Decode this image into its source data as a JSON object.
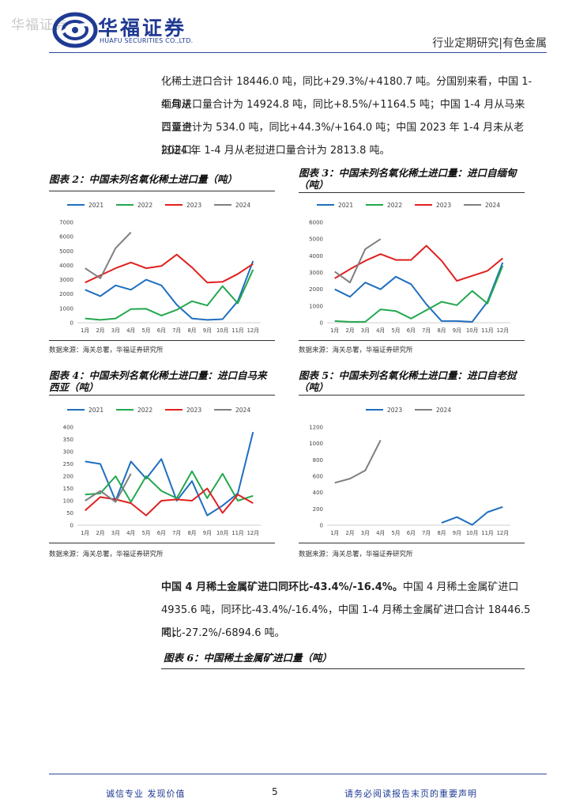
{
  "header": {
    "watermark": "华福证券",
    "logo_cn": "华福证券",
    "logo_en": "HUAFU SECURITIES CO.,LTD.",
    "report_type": "行业定期研究|有色金属"
  },
  "intro": {
    "line1": "化稀土进口合计 18446.0 吨，同比+29.3%/+4180.7 吨。分国别来看，中国 1-4 月从",
    "line2": "缅甸进口量合计为 14924.8 吨，同比+8.5%/+1164.5 吨；中国 1-4 月从马来西亚进",
    "line3": "口量合计为 534.0 吨，同比+44.3%/+164.0 吨；中国 2023 年 1-4 月未从老挝进口，",
    "line4": "2024 年 1-4 月从老挝进口量合计为 2813.8 吨。"
  },
  "figures": {
    "fig2": {
      "title": "图表 2：中国未列名氧化稀土进口量（吨）",
      "source": "数据来源：海关总署，华福证券研究所"
    },
    "fig3": {
      "title_l1": "图表 3：中国未列名氧化稀土进口量：进口自缅甸",
      "title_l2": "（吨）",
      "source": "数据来源：海关总署，华福证券研究所"
    },
    "fig4": {
      "title_l1": "图表 4：中国未列名氧化稀土进口量：进口自马来",
      "title_l2": "西亚（吨）",
      "source": "数据来源：海关总署，华福证券研究所"
    },
    "fig5": {
      "title_l1": "图表 5：中国未列名氧化稀土进口量：进口自老挝",
      "title_l2": "（吨）",
      "source": "数据来源：海关总署，华福证券研究所"
    },
    "fig6": {
      "title": "图表 6：中国稀土金属矿进口量（吨）"
    }
  },
  "body2": {
    "highlight": "中国 4 月稀土金属矿进口同环比-43.4%/-16.4%。",
    "line1_rest": "中国 4 月稀土金属矿进口",
    "line2": "4935.6 吨，同环比-43.4%/-16.4%，中国 1-4 月稀土金属矿进口合计 18446.5 吨，",
    "line3": "同比-27.2%/-6894.6 吨。"
  },
  "footer": {
    "left": "诚信专业  发现价值",
    "page": "5",
    "right": "请务必阅读报告末页的重要声明"
  },
  "colors": {
    "s2021": "#1f6fbf",
    "s2022": "#23a84e",
    "s2023": "#e0201f",
    "s2024": "#7f7f7f"
  },
  "chart_data": [
    {
      "id": "fig2",
      "type": "line",
      "title": "中国未列名氧化稀土进口量（吨）",
      "categories": [
        "1月",
        "2月",
        "3月",
        "4月",
        "5月",
        "6月",
        "7月",
        "8月",
        "9月",
        "10月",
        "11月",
        "12月"
      ],
      "ylim": [
        0,
        7000
      ],
      "yticks": [
        0,
        1000,
        2000,
        3000,
        4000,
        5000,
        6000,
        7000
      ],
      "legend": "top",
      "series": [
        {
          "name": "2021",
          "color": "#1f6fbf",
          "values": [
            2300,
            1850,
            2600,
            2300,
            3000,
            2600,
            1250,
            300,
            200,
            250,
            1500,
            4300
          ]
        },
        {
          "name": "2022",
          "color": "#23a84e",
          "values": [
            300,
            200,
            300,
            950,
            970,
            500,
            900,
            1500,
            1200,
            2550,
            1350,
            3700
          ]
        },
        {
          "name": "2023",
          "color": "#e0201f",
          "values": [
            2800,
            3300,
            3800,
            4200,
            3800,
            3950,
            4750,
            3850,
            2800,
            2850,
            3400,
            4100
          ]
        },
        {
          "name": "2024",
          "color": "#7f7f7f",
          "values": [
            3800,
            3100,
            5200,
            6300,
            null,
            null,
            null,
            null,
            null,
            null,
            null,
            null
          ]
        }
      ]
    },
    {
      "id": "fig3",
      "type": "line",
      "title": "中国未列名氧化稀土进口量：进口自缅甸（吨）",
      "categories": [
        "1月",
        "2月",
        "3月",
        "4月",
        "5月",
        "6月",
        "7月",
        "8月",
        "9月",
        "10月",
        "11月",
        "12月"
      ],
      "ylim": [
        0,
        6000
      ],
      "yticks": [
        0,
        1000,
        2000,
        3000,
        4000,
        5000,
        6000
      ],
      "legend": "top",
      "series": [
        {
          "name": "2021",
          "color": "#1f6fbf",
          "values": [
            2000,
            1550,
            2400,
            2000,
            2750,
            2300,
            1100,
            100,
            100,
            50,
            1250,
            3600
          ]
        },
        {
          "name": "2022",
          "color": "#23a84e",
          "values": [
            100,
            50,
            50,
            800,
            700,
            250,
            750,
            1250,
            1050,
            1900,
            1150,
            3400
          ]
        },
        {
          "name": "2023",
          "color": "#e0201f",
          "values": [
            2650,
            3200,
            3700,
            4100,
            3750,
            3750,
            4600,
            3700,
            2500,
            2800,
            3100,
            3850
          ]
        },
        {
          "name": "2024",
          "color": "#7f7f7f",
          "values": [
            3050,
            2400,
            4400,
            5000,
            null,
            null,
            null,
            null,
            null,
            null,
            null,
            null
          ]
        }
      ]
    },
    {
      "id": "fig4",
      "type": "line",
      "title": "中国未列名氧化稀土进口量：进口自马来西亚（吨）",
      "categories": [
        "1月",
        "2月",
        "3月",
        "4月",
        "5月",
        "6月",
        "7月",
        "8月",
        "9月",
        "10月",
        "11月",
        "12月"
      ],
      "ylim": [
        0,
        400
      ],
      "yticks": [
        0,
        50,
        100,
        150,
        200,
        250,
        300,
        350,
        400
      ],
      "legend": "top",
      "series": [
        {
          "name": "2021",
          "color": "#1f6fbf",
          "values": [
            260,
            250,
            100,
            260,
            190,
            270,
            100,
            180,
            40,
            80,
            130,
            380
          ]
        },
        {
          "name": "2022",
          "color": "#23a84e",
          "values": [
            125,
            130,
            200,
            95,
            200,
            140,
            110,
            220,
            110,
            210,
            100,
            120
          ]
        },
        {
          "name": "2023",
          "color": "#e0201f",
          "values": [
            60,
            115,
            105,
            90,
            40,
            100,
            105,
            100,
            150,
            50,
            125,
            90
          ]
        },
        {
          "name": "2024",
          "color": "#7f7f7f",
          "values": [
            100,
            140,
            95,
            210,
            null,
            null,
            null,
            null,
            null,
            null,
            null,
            null
          ]
        }
      ]
    },
    {
      "id": "fig5",
      "type": "line",
      "title": "中国未列名氧化稀土进口量：进口自老挝（吨）",
      "categories": [
        "1月",
        "2月",
        "3月",
        "4月",
        "5月",
        "6月",
        "7月",
        "8月",
        "9月",
        "10月",
        "11月",
        "12月"
      ],
      "ylim": [
        0,
        1200
      ],
      "yticks": [
        0,
        200,
        400,
        600,
        800,
        1000,
        1200
      ],
      "legend": "top",
      "series": [
        {
          "name": "2023",
          "color": "#1f6fbf",
          "values": [
            null,
            null,
            null,
            null,
            null,
            null,
            null,
            30,
            100,
            5,
            160,
            225
          ]
        },
        {
          "name": "2024",
          "color": "#7f7f7f",
          "values": [
            520,
            570,
            670,
            1040,
            null,
            null,
            null,
            null,
            null,
            null,
            null,
            null
          ]
        }
      ]
    }
  ]
}
